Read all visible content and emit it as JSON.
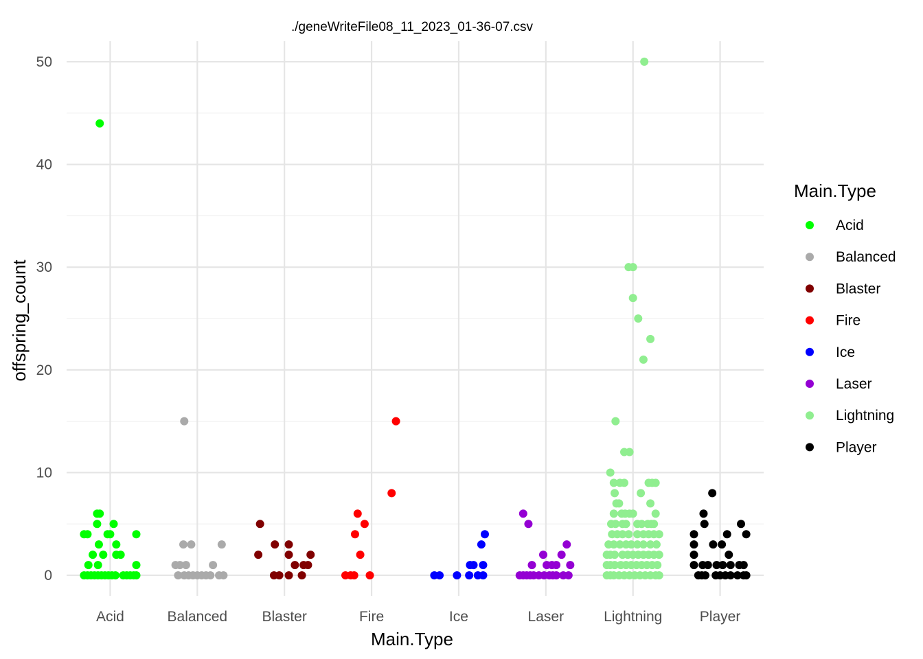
{
  "chart_data": {
    "type": "scatter",
    "subtype": "jitter-strip",
    "title": "./geneWriteFile08_11_2023_01-36-07.csv",
    "xlabel": "Main.Type",
    "ylabel": "offspring_count",
    "categories": [
      "Acid",
      "Balanced",
      "Blaster",
      "Fire",
      "Ice",
      "Laser",
      "Lightning",
      "Player"
    ],
    "ylim": [
      -2,
      52
    ],
    "yticks": [
      0,
      10,
      20,
      30,
      40,
      50
    ],
    "grid": true,
    "legend": {
      "title": "Main.Type",
      "position": "right",
      "entries": [
        "Acid",
        "Balanced",
        "Blaster",
        "Fire",
        "Ice",
        "Laser",
        "Lightning",
        "Player"
      ]
    },
    "colors": {
      "Acid": "#00ff00",
      "Balanced": "#aaaaaa",
      "Blaster": "#800000",
      "Fire": "#ff0000",
      "Ice": "#0000ff",
      "Laser": "#9400d3",
      "Lightning": "#90ee90",
      "Player": "#000000"
    },
    "series": [
      {
        "name": "Acid",
        "points": [
          [
            -0.3,
            4
          ],
          [
            -0.26,
            4
          ],
          [
            -0.15,
            6
          ],
          [
            -0.12,
            6
          ],
          [
            -0.15,
            5
          ],
          [
            -0.03,
            4
          ],
          [
            0,
            4
          ],
          [
            0.04,
            5
          ],
          [
            -0.13,
            3
          ],
          [
            0.07,
            3
          ],
          [
            -0.2,
            2
          ],
          [
            -0.08,
            2
          ],
          [
            0.07,
            2
          ],
          [
            0.12,
            2
          ],
          [
            -0.25,
            1
          ],
          [
            -0.14,
            1
          ],
          [
            0.3,
            1
          ],
          [
            -0.12,
            44
          ],
          [
            0.3,
            4
          ],
          [
            -0.3,
            0
          ],
          [
            -0.26,
            0
          ],
          [
            -0.22,
            0
          ],
          [
            -0.18,
            0
          ],
          [
            -0.14,
            0
          ],
          [
            -0.1,
            0
          ],
          [
            -0.06,
            0
          ],
          [
            -0.02,
            0
          ],
          [
            0.02,
            0
          ],
          [
            0.06,
            0
          ],
          [
            0.15,
            0
          ],
          [
            0.19,
            0
          ],
          [
            0.23,
            0
          ],
          [
            0.27,
            0
          ],
          [
            0.3,
            0
          ]
        ]
      },
      {
        "name": "Balanced",
        "points": [
          [
            -0.15,
            15
          ],
          [
            -0.16,
            3
          ],
          [
            -0.07,
            3
          ],
          [
            0.28,
            3
          ],
          [
            -0.25,
            1
          ],
          [
            -0.2,
            1
          ],
          [
            -0.13,
            1
          ],
          [
            0.18,
            1
          ],
          [
            -0.22,
            0
          ],
          [
            -0.15,
            0
          ],
          [
            -0.1,
            0
          ],
          [
            -0.05,
            0
          ],
          [
            0,
            0
          ],
          [
            0.05,
            0
          ],
          [
            0.1,
            0
          ],
          [
            0.15,
            0
          ],
          [
            0.25,
            0
          ],
          [
            0.3,
            0
          ]
        ]
      },
      {
        "name": "Blaster",
        "points": [
          [
            -0.28,
            5
          ],
          [
            -0.11,
            3
          ],
          [
            0.05,
            3
          ],
          [
            -0.3,
            2
          ],
          [
            0.05,
            2
          ],
          [
            0.3,
            2
          ],
          [
            0.12,
            1
          ],
          [
            0.22,
            1
          ],
          [
            0.27,
            1
          ],
          [
            -0.12,
            0
          ],
          [
            -0.06,
            0
          ],
          [
            0.05,
            0
          ],
          [
            0.2,
            0
          ]
        ]
      },
      {
        "name": "Fire",
        "points": [
          [
            0.28,
            15
          ],
          [
            0.23,
            8
          ],
          [
            -0.16,
            6
          ],
          [
            -0.08,
            5
          ],
          [
            -0.19,
            4
          ],
          [
            -0.13,
            2
          ],
          [
            -0.3,
            0
          ],
          [
            -0.24,
            0
          ],
          [
            -0.2,
            0
          ],
          [
            -0.02,
            0
          ]
        ]
      },
      {
        "name": "Ice",
        "points": [
          [
            0.3,
            4
          ],
          [
            0.26,
            3
          ],
          [
            0.13,
            1
          ],
          [
            0.17,
            1
          ],
          [
            0.28,
            1
          ],
          [
            -0.28,
            0
          ],
          [
            -0.22,
            0
          ],
          [
            -0.02,
            0
          ],
          [
            0.12,
            0
          ],
          [
            0.22,
            0
          ],
          [
            0.28,
            0
          ]
        ]
      },
      {
        "name": "Laser",
        "points": [
          [
            -0.26,
            6
          ],
          [
            -0.2,
            5
          ],
          [
            -0.03,
            2
          ],
          [
            0.18,
            2
          ],
          [
            0.24,
            3
          ],
          [
            -0.16,
            1
          ],
          [
            0.01,
            1
          ],
          [
            0.07,
            1
          ],
          [
            0.12,
            1
          ],
          [
            0.28,
            1
          ],
          [
            -0.3,
            0
          ],
          [
            -0.26,
            0
          ],
          [
            -0.22,
            0
          ],
          [
            -0.18,
            0
          ],
          [
            -0.14,
            0
          ],
          [
            -0.08,
            0
          ],
          [
            -0.02,
            0
          ],
          [
            0.04,
            0
          ],
          [
            0.08,
            0
          ],
          [
            0.12,
            0
          ],
          [
            0.2,
            0
          ],
          [
            0.26,
            0
          ]
        ]
      },
      {
        "name": "Lightning",
        "points": [
          [
            0.13,
            50
          ],
          [
            -0.05,
            30
          ],
          [
            0,
            30
          ],
          [
            0,
            27
          ],
          [
            0.06,
            25
          ],
          [
            0.2,
            23
          ],
          [
            0.12,
            21
          ],
          [
            -0.2,
            15
          ],
          [
            -0.1,
            12
          ],
          [
            -0.04,
            12
          ],
          [
            -0.26,
            10
          ],
          [
            -0.22,
            9
          ],
          [
            -0.15,
            9
          ],
          [
            -0.1,
            9
          ],
          [
            0.18,
            9
          ],
          [
            0.22,
            9
          ],
          [
            0.26,
            9
          ],
          [
            -0.21,
            8
          ],
          [
            0.09,
            8
          ],
          [
            -0.19,
            7
          ],
          [
            -0.16,
            7
          ],
          [
            0.2,
            7
          ],
          [
            -0.22,
            6
          ],
          [
            -0.13,
            6
          ],
          [
            -0.09,
            6
          ],
          [
            -0.04,
            6
          ],
          [
            0,
            6
          ],
          [
            0.26,
            6
          ],
          [
            -0.25,
            5
          ],
          [
            -0.2,
            5
          ],
          [
            -0.12,
            5
          ],
          [
            -0.08,
            5
          ],
          [
            0.05,
            5
          ],
          [
            0.1,
            5
          ],
          [
            0.17,
            5
          ],
          [
            0.21,
            5
          ],
          [
            0.24,
            5
          ],
          [
            -0.24,
            4
          ],
          [
            -0.18,
            4
          ],
          [
            -0.12,
            4
          ],
          [
            -0.05,
            4
          ],
          [
            0.05,
            4
          ],
          [
            0.12,
            4
          ],
          [
            0.18,
            4
          ],
          [
            0.24,
            4
          ],
          [
            0.3,
            4
          ],
          [
            -0.28,
            3
          ],
          [
            -0.22,
            3
          ],
          [
            -0.15,
            3
          ],
          [
            -0.08,
            3
          ],
          [
            -0.02,
            3
          ],
          [
            0.05,
            3
          ],
          [
            0.12,
            3
          ],
          [
            0.2,
            3
          ],
          [
            0.27,
            3
          ],
          [
            -0.3,
            2
          ],
          [
            -0.26,
            2
          ],
          [
            -0.21,
            2
          ],
          [
            -0.12,
            2
          ],
          [
            -0.06,
            2
          ],
          [
            0,
            2
          ],
          [
            0.06,
            2
          ],
          [
            0.12,
            2
          ],
          [
            0.18,
            2
          ],
          [
            0.24,
            2
          ],
          [
            0.3,
            2
          ],
          [
            -0.3,
            1
          ],
          [
            -0.26,
            1
          ],
          [
            -0.21,
            1
          ],
          [
            -0.14,
            1
          ],
          [
            -0.08,
            1
          ],
          [
            -0.02,
            1
          ],
          [
            0.04,
            1
          ],
          [
            0.1,
            1
          ],
          [
            0.16,
            1
          ],
          [
            0.22,
            1
          ],
          [
            0.28,
            1
          ],
          [
            -0.3,
            0
          ],
          [
            -0.26,
            0
          ],
          [
            -0.22,
            0
          ],
          [
            -0.16,
            0
          ],
          [
            -0.1,
            0
          ],
          [
            -0.04,
            0
          ],
          [
            0.02,
            0
          ],
          [
            0.08,
            0
          ],
          [
            0.14,
            0
          ],
          [
            0.2,
            0
          ],
          [
            0.26,
            0
          ],
          [
            0.3,
            0
          ]
        ]
      },
      {
        "name": "Player",
        "points": [
          [
            -0.09,
            8
          ],
          [
            -0.19,
            6
          ],
          [
            0.24,
            5
          ],
          [
            -0.18,
            5
          ],
          [
            -0.3,
            4
          ],
          [
            0.08,
            4
          ],
          [
            0.3,
            4
          ],
          [
            -0.3,
            3
          ],
          [
            -0.08,
            3
          ],
          [
            0.02,
            3
          ],
          [
            -0.3,
            2
          ],
          [
            0.1,
            2
          ],
          [
            -0.3,
            1
          ],
          [
            -0.2,
            1
          ],
          [
            -0.14,
            1
          ],
          [
            -0.04,
            1
          ],
          [
            0.03,
            1
          ],
          [
            0.12,
            1
          ],
          [
            0.22,
            1
          ],
          [
            0.27,
            1
          ],
          [
            -0.25,
            0
          ],
          [
            -0.21,
            0
          ],
          [
            -0.17,
            0
          ],
          [
            -0.05,
            0
          ],
          [
            0,
            0
          ],
          [
            0.06,
            0
          ],
          [
            0.12,
            0
          ],
          [
            0.2,
            0
          ],
          [
            0.27,
            0
          ],
          [
            0.3,
            0
          ]
        ]
      }
    ]
  }
}
